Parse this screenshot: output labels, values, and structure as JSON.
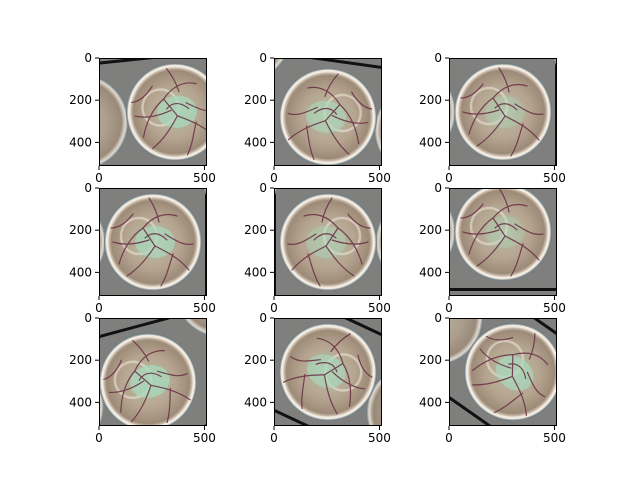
{
  "figure": {
    "background": "#ffffff"
  },
  "chart_data": {
    "type": "image_grid",
    "rows": 3,
    "cols": 3,
    "x_ticks": [
      0,
      500
    ],
    "y_ticks": [
      0,
      200,
      400
    ],
    "xlim": [
      0,
      512
    ],
    "ylim": [
      512,
      0
    ],
    "panels": [
      {
        "row": 0,
        "col": 0,
        "flip": false,
        "rot": -6,
        "dx": 22,
        "dy": 0,
        "green": 0.75
      },
      {
        "row": 0,
        "col": 1,
        "flip": true,
        "rot": 8,
        "dx": 0,
        "dy": 5,
        "green": 0.6
      },
      {
        "row": 0,
        "col": 2,
        "flip": false,
        "rot": 0,
        "dx": 0,
        "dy": 0,
        "green": 0.35
      },
      {
        "row": 1,
        "col": 0,
        "flip": false,
        "rot": 0,
        "dx": 0,
        "dy": 0,
        "green": 0.7
      },
      {
        "row": 1,
        "col": 1,
        "flip": true,
        "rot": 0,
        "dx": 0,
        "dy": 0,
        "green": 0.4
      },
      {
        "row": 1,
        "col": 2,
        "flip": false,
        "rot": 0,
        "dx": 0,
        "dy": -10,
        "green": 0.3
      },
      {
        "row": 2,
        "col": 0,
        "flip": false,
        "rot": -15,
        "dx": -5,
        "dy": 10,
        "green": 0.8
      },
      {
        "row": 2,
        "col": 1,
        "flip": true,
        "rot": 25,
        "dx": 0,
        "dy": 0,
        "green": 0.65
      },
      {
        "row": 2,
        "col": 2,
        "flip": false,
        "rot": 35,
        "dx": 10,
        "dy": 0,
        "green": 0.7
      }
    ],
    "colors": {
      "background": "#7f807e",
      "rim": "#f3ebe0",
      "disc": "#b5a48f",
      "center": "#a8d8bc",
      "vein": "#6b3448",
      "dark_line": "#111111"
    }
  }
}
